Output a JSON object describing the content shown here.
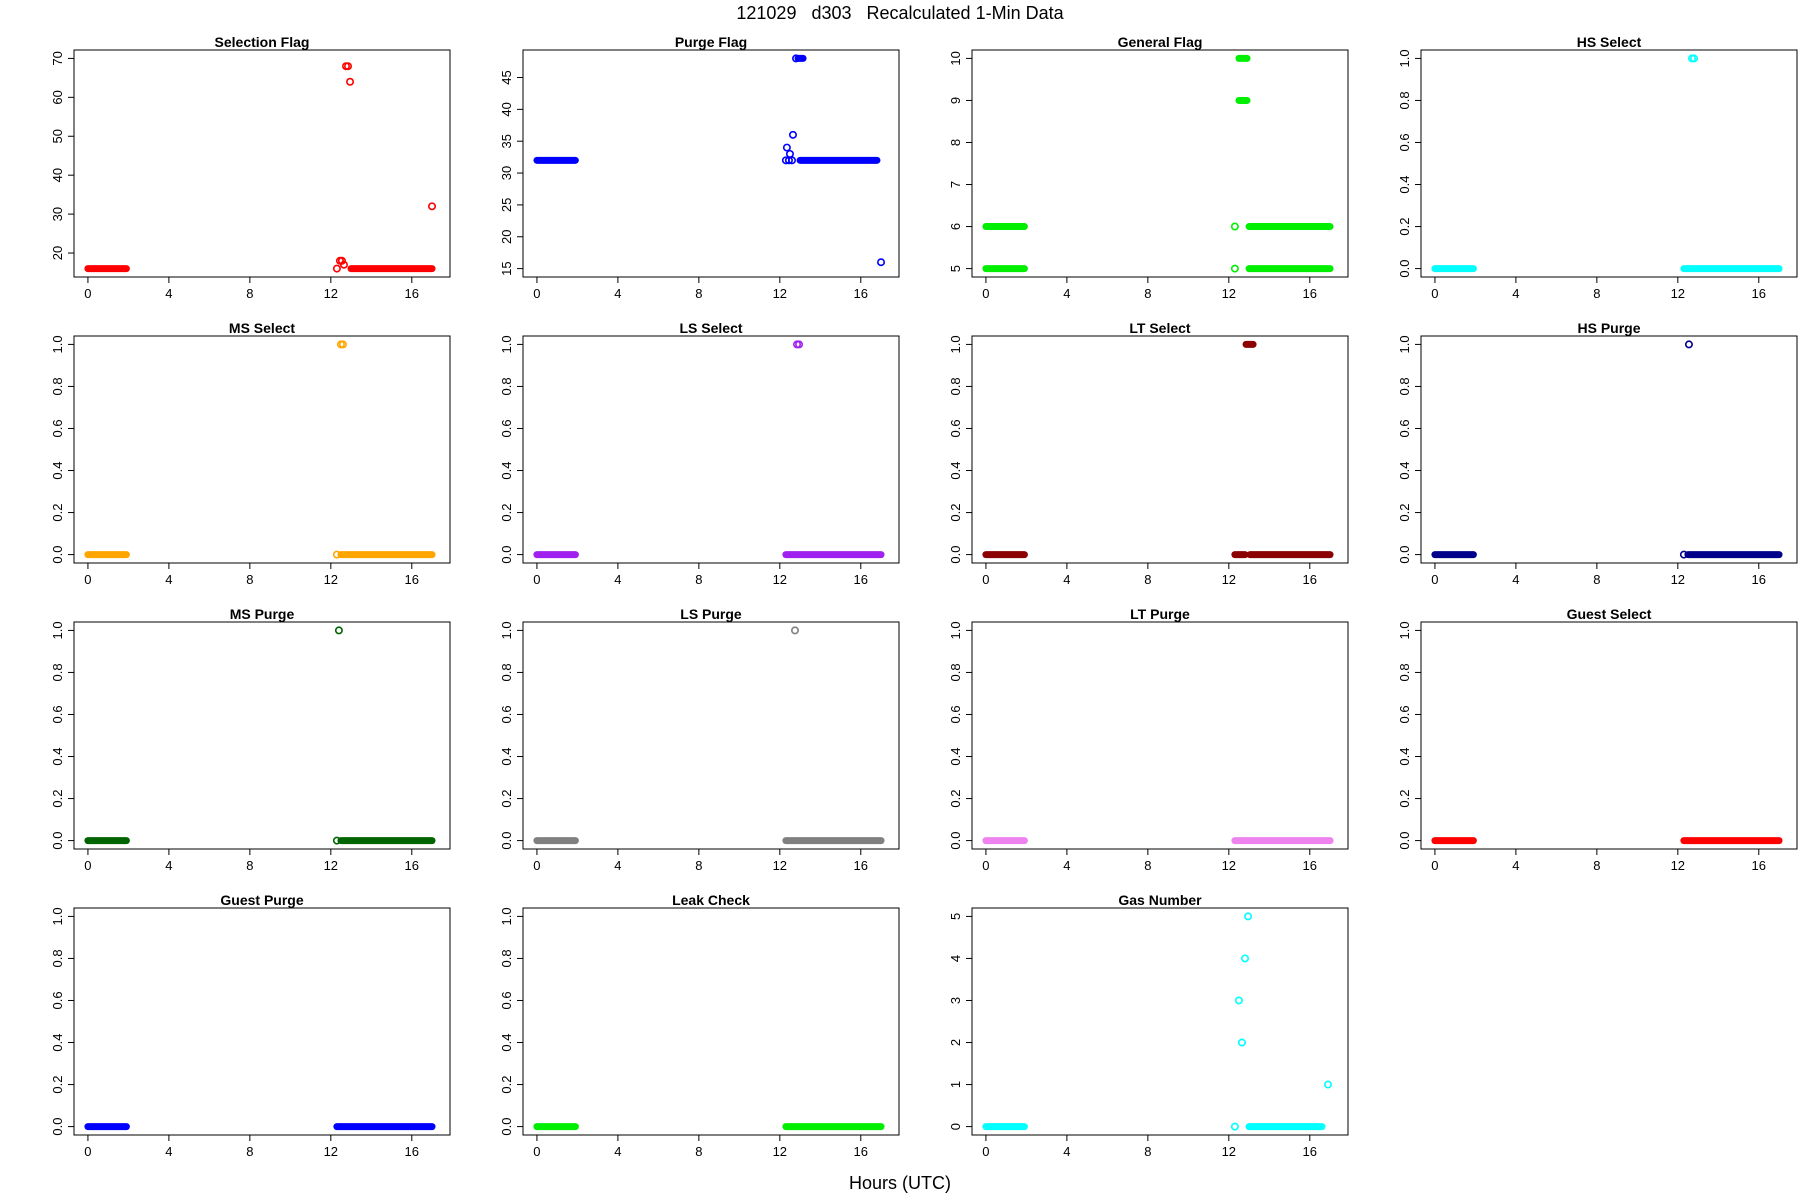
{
  "title": "121029   d303   Recalculated 1-Min Data",
  "xlabel": "Hours (UTC)",
  "chart_data": [
    {
      "type": "scatter",
      "title": "Selection Flag",
      "color": "#ff0000",
      "xlim": [
        0,
        17.2
      ],
      "ylim": [
        16,
        70
      ],
      "yticks": [
        20,
        30,
        40,
        50,
        60,
        70
      ],
      "xticks": [
        0,
        4,
        8,
        12,
        16
      ],
      "segments": [
        {
          "x0": 0,
          "x1": 1.9,
          "y": 16
        },
        {
          "x0": 13,
          "x1": 17.0,
          "y": 16
        }
      ],
      "points": [
        {
          "x": 12.3,
          "y": 16
        },
        {
          "x": 12.45,
          "y": 18
        },
        {
          "x": 12.55,
          "y": 18
        },
        {
          "x": 12.65,
          "y": 17
        },
        {
          "x": 12.75,
          "y": 68
        },
        {
          "x": 12.85,
          "y": 68
        },
        {
          "x": 12.95,
          "y": 64
        },
        {
          "x": 17.0,
          "y": 32
        }
      ]
    },
    {
      "type": "scatter",
      "title": "Purge Flag",
      "color": "#0000ff",
      "xlim": [
        0,
        17.2
      ],
      "ylim": [
        16,
        48
      ],
      "yticks": [
        15,
        20,
        25,
        30,
        35,
        40,
        45
      ],
      "xticks": [
        0,
        4,
        8,
        12,
        16
      ],
      "segments": [
        {
          "x0": 0,
          "x1": 1.9,
          "y": 32
        },
        {
          "x0": 13,
          "x1": 16.8,
          "y": 32
        },
        {
          "x0": 12.9,
          "x1": 13.15,
          "y": 48
        }
      ],
      "points": [
        {
          "x": 12.3,
          "y": 32
        },
        {
          "x": 12.45,
          "y": 32
        },
        {
          "x": 12.6,
          "y": 32
        },
        {
          "x": 12.35,
          "y": 34
        },
        {
          "x": 12.5,
          "y": 33
        },
        {
          "x": 12.65,
          "y": 36
        },
        {
          "x": 12.8,
          "y": 48
        },
        {
          "x": 17.0,
          "y": 16
        }
      ]
    },
    {
      "type": "scatter",
      "title": "General Flag",
      "color": "#00ee00",
      "xlim": [
        0,
        17.2
      ],
      "ylim": [
        5,
        10
      ],
      "yticks": [
        5,
        6,
        7,
        8,
        9,
        10
      ],
      "xticks": [
        0,
        4,
        8,
        12,
        16
      ],
      "segments": [
        {
          "x0": 0,
          "x1": 1.9,
          "y": 5
        },
        {
          "x0": 0,
          "x1": 1.9,
          "y": 6
        },
        {
          "x0": 13,
          "x1": 17.0,
          "y": 5
        },
        {
          "x0": 13,
          "x1": 17.0,
          "y": 6
        },
        {
          "x0": 12.5,
          "x1": 12.9,
          "y": 9
        },
        {
          "x0": 12.5,
          "x1": 12.9,
          "y": 10
        }
      ],
      "points": [
        {
          "x": 12.3,
          "y": 5
        },
        {
          "x": 12.3,
          "y": 6
        }
      ]
    },
    {
      "type": "scatter",
      "title": "HS Select",
      "color": "#00ffff",
      "xlim": [
        0,
        17.2
      ],
      "ylim": [
        0,
        1
      ],
      "yticks": [
        0.0,
        0.2,
        0.4,
        0.6,
        0.8,
        1.0
      ],
      "xticks": [
        0,
        4,
        8,
        12,
        16
      ],
      "segments": [
        {
          "x0": 0,
          "x1": 1.9,
          "y": 0
        },
        {
          "x0": 12.3,
          "x1": 17.0,
          "y": 0
        }
      ],
      "points": [
        {
          "x": 12.7,
          "y": 1
        },
        {
          "x": 12.8,
          "y": 1
        }
      ]
    },
    {
      "type": "scatter",
      "title": "MS Select",
      "color": "#ffa500",
      "xlim": [
        0,
        17.2
      ],
      "ylim": [
        0,
        1
      ],
      "yticks": [
        0.0,
        0.2,
        0.4,
        0.6,
        0.8,
        1.0
      ],
      "xticks": [
        0,
        4,
        8,
        12,
        16
      ],
      "segments": [
        {
          "x0": 0,
          "x1": 1.9,
          "y": 0
        },
        {
          "x0": 12.5,
          "x1": 17.0,
          "y": 0
        }
      ],
      "points": [
        {
          "x": 12.3,
          "y": 0
        },
        {
          "x": 12.5,
          "y": 1
        },
        {
          "x": 12.6,
          "y": 1
        }
      ]
    },
    {
      "type": "scatter",
      "title": "LS Select",
      "color": "#a020f0",
      "xlim": [
        0,
        17.2
      ],
      "ylim": [
        0,
        1
      ],
      "yticks": [
        0.0,
        0.2,
        0.4,
        0.6,
        0.8,
        1.0
      ],
      "xticks": [
        0,
        4,
        8,
        12,
        16
      ],
      "segments": [
        {
          "x0": 0,
          "x1": 1.9,
          "y": 0
        },
        {
          "x0": 12.3,
          "x1": 17.0,
          "y": 0
        }
      ],
      "points": [
        {
          "x": 12.85,
          "y": 1
        },
        {
          "x": 12.95,
          "y": 1
        }
      ]
    },
    {
      "type": "scatter",
      "title": "LT Select",
      "color": "#8b0000",
      "xlim": [
        0,
        17.2
      ],
      "ylim": [
        0,
        1
      ],
      "yticks": [
        0.0,
        0.2,
        0.4,
        0.6,
        0.8,
        1.0
      ],
      "xticks": [
        0,
        4,
        8,
        12,
        16
      ],
      "segments": [
        {
          "x0": 0,
          "x1": 1.9,
          "y": 0
        },
        {
          "x0": 12.3,
          "x1": 12.8,
          "y": 0
        },
        {
          "x0": 13.05,
          "x1": 17.0,
          "y": 0
        },
        {
          "x0": 12.85,
          "x1": 13.2,
          "y": 1
        }
      ],
      "points": []
    },
    {
      "type": "scatter",
      "title": "HS Purge",
      "color": "#00008b",
      "xlim": [
        0,
        17.2
      ],
      "ylim": [
        0,
        1
      ],
      "yticks": [
        0.0,
        0.2,
        0.4,
        0.6,
        0.8,
        1.0
      ],
      "xticks": [
        0,
        4,
        8,
        12,
        16
      ],
      "segments": [
        {
          "x0": 0,
          "x1": 1.9,
          "y": 0
        },
        {
          "x0": 12.5,
          "x1": 17.0,
          "y": 0
        }
      ],
      "points": [
        {
          "x": 12.3,
          "y": 0
        },
        {
          "x": 12.55,
          "y": 1
        }
      ]
    },
    {
      "type": "scatter",
      "title": "MS Purge",
      "color": "#006400",
      "xlim": [
        0,
        17.2
      ],
      "ylim": [
        0,
        1
      ],
      "yticks": [
        0.0,
        0.2,
        0.4,
        0.6,
        0.8,
        1.0
      ],
      "xticks": [
        0,
        4,
        8,
        12,
        16
      ],
      "segments": [
        {
          "x0": 0,
          "x1": 1.9,
          "y": 0
        },
        {
          "x0": 12.5,
          "x1": 17.0,
          "y": 0
        }
      ],
      "points": [
        {
          "x": 12.3,
          "y": 0
        },
        {
          "x": 12.4,
          "y": 1
        }
      ]
    },
    {
      "type": "scatter",
      "title": "LS Purge",
      "color": "#808080",
      "xlim": [
        0,
        17.2
      ],
      "ylim": [
        0,
        1
      ],
      "yticks": [
        0.0,
        0.2,
        0.4,
        0.6,
        0.8,
        1.0
      ],
      "xticks": [
        0,
        4,
        8,
        12,
        16
      ],
      "segments": [
        {
          "x0": 0,
          "x1": 1.9,
          "y": 0
        },
        {
          "x0": 12.3,
          "x1": 17.0,
          "y": 0
        }
      ],
      "points": [
        {
          "x": 12.75,
          "y": 1
        }
      ]
    },
    {
      "type": "scatter",
      "title": "LT Purge",
      "color": "#ee82ee",
      "xlim": [
        0,
        17.2
      ],
      "ylim": [
        0,
        1
      ],
      "yticks": [
        0.0,
        0.2,
        0.4,
        0.6,
        0.8,
        1.0
      ],
      "xticks": [
        0,
        4,
        8,
        12,
        16
      ],
      "segments": [
        {
          "x0": 0,
          "x1": 1.9,
          "y": 0
        },
        {
          "x0": 12.3,
          "x1": 17.0,
          "y": 0
        }
      ],
      "points": []
    },
    {
      "type": "scatter",
      "title": "Guest Select",
      "color": "#ff0000",
      "xlim": [
        0,
        17.2
      ],
      "ylim": [
        0,
        1
      ],
      "yticks": [
        0.0,
        0.2,
        0.4,
        0.6,
        0.8,
        1.0
      ],
      "xticks": [
        0,
        4,
        8,
        12,
        16
      ],
      "segments": [
        {
          "x0": 0,
          "x1": 1.9,
          "y": 0
        },
        {
          "x0": 12.3,
          "x1": 17.0,
          "y": 0
        }
      ],
      "points": []
    },
    {
      "type": "scatter",
      "title": "Guest Purge",
      "color": "#0000ff",
      "xlim": [
        0,
        17.2
      ],
      "ylim": [
        0,
        1
      ],
      "yticks": [
        0.0,
        0.2,
        0.4,
        0.6,
        0.8,
        1.0
      ],
      "xticks": [
        0,
        4,
        8,
        12,
        16
      ],
      "segments": [
        {
          "x0": 0,
          "x1": 1.9,
          "y": 0
        },
        {
          "x0": 12.3,
          "x1": 17.0,
          "y": 0
        }
      ],
      "points": []
    },
    {
      "type": "scatter",
      "title": "Leak Check",
      "color": "#00ee00",
      "xlim": [
        0,
        17.2
      ],
      "ylim": [
        0,
        1
      ],
      "yticks": [
        0.0,
        0.2,
        0.4,
        0.6,
        0.8,
        1.0
      ],
      "xticks": [
        0,
        4,
        8,
        12,
        16
      ],
      "segments": [
        {
          "x0": 0,
          "x1": 1.9,
          "y": 0
        },
        {
          "x0": 12.3,
          "x1": 17.0,
          "y": 0
        }
      ],
      "points": []
    },
    {
      "type": "scatter",
      "title": "Gas Number",
      "color": "#00ffff",
      "xlim": [
        0,
        17.2
      ],
      "ylim": [
        0,
        5
      ],
      "yticks": [
        0,
        1,
        2,
        3,
        4,
        5
      ],
      "xticks": [
        0,
        4,
        8,
        12,
        16
      ],
      "segments": [
        {
          "x0": 0,
          "x1": 1.9,
          "y": 0
        },
        {
          "x0": 13,
          "x1": 16.6,
          "y": 0
        }
      ],
      "points": [
        {
          "x": 12.3,
          "y": 0
        },
        {
          "x": 12.5,
          "y": 3
        },
        {
          "x": 12.65,
          "y": 2
        },
        {
          "x": 12.8,
          "y": 4
        },
        {
          "x": 12.95,
          "y": 5
        },
        {
          "x": 16.9,
          "y": 1
        }
      ]
    }
  ]
}
